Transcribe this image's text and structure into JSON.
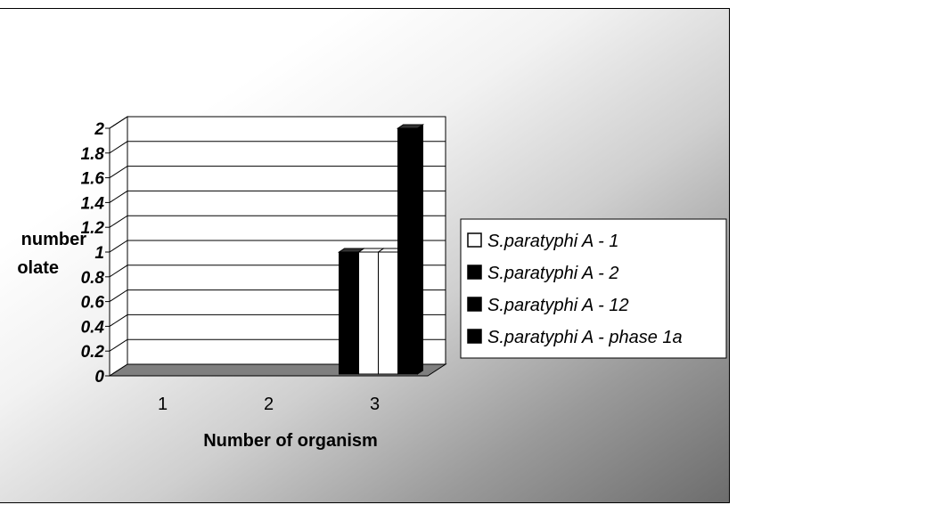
{
  "chart_data": {
    "type": "bar",
    "style": "3d-clustered-column",
    "xlabel": "Number of organism",
    "ylabel_lines": [
      "number",
      "olate"
    ],
    "categories": [
      "1",
      "2",
      "3"
    ],
    "y_ticks": [
      "0",
      "0.2",
      "0.4",
      "0.6",
      "0.8",
      "1",
      "1.2",
      "1.4",
      "1.6",
      "1.8",
      "2"
    ],
    "ylim": [
      0,
      2
    ],
    "grid": true,
    "legend_position": "right",
    "series": [
      {
        "name": "S.paratyphi A - 1",
        "color": "#ffffff",
        "values": [
          0,
          0,
          1
        ]
      },
      {
        "name": "S.paratyphi A - 2",
        "color": "#000000",
        "values": [
          0,
          0,
          1
        ]
      },
      {
        "name": "S.paratyphi A - 12",
        "color": "#000000",
        "values": [
          0,
          0,
          1
        ]
      },
      {
        "name": "S.paratyphi A - phase 1a",
        "color": "#000000",
        "values": [
          0,
          0,
          2
        ]
      }
    ],
    "series_order_in_cluster": [
      1,
      0,
      0,
      3
    ]
  }
}
